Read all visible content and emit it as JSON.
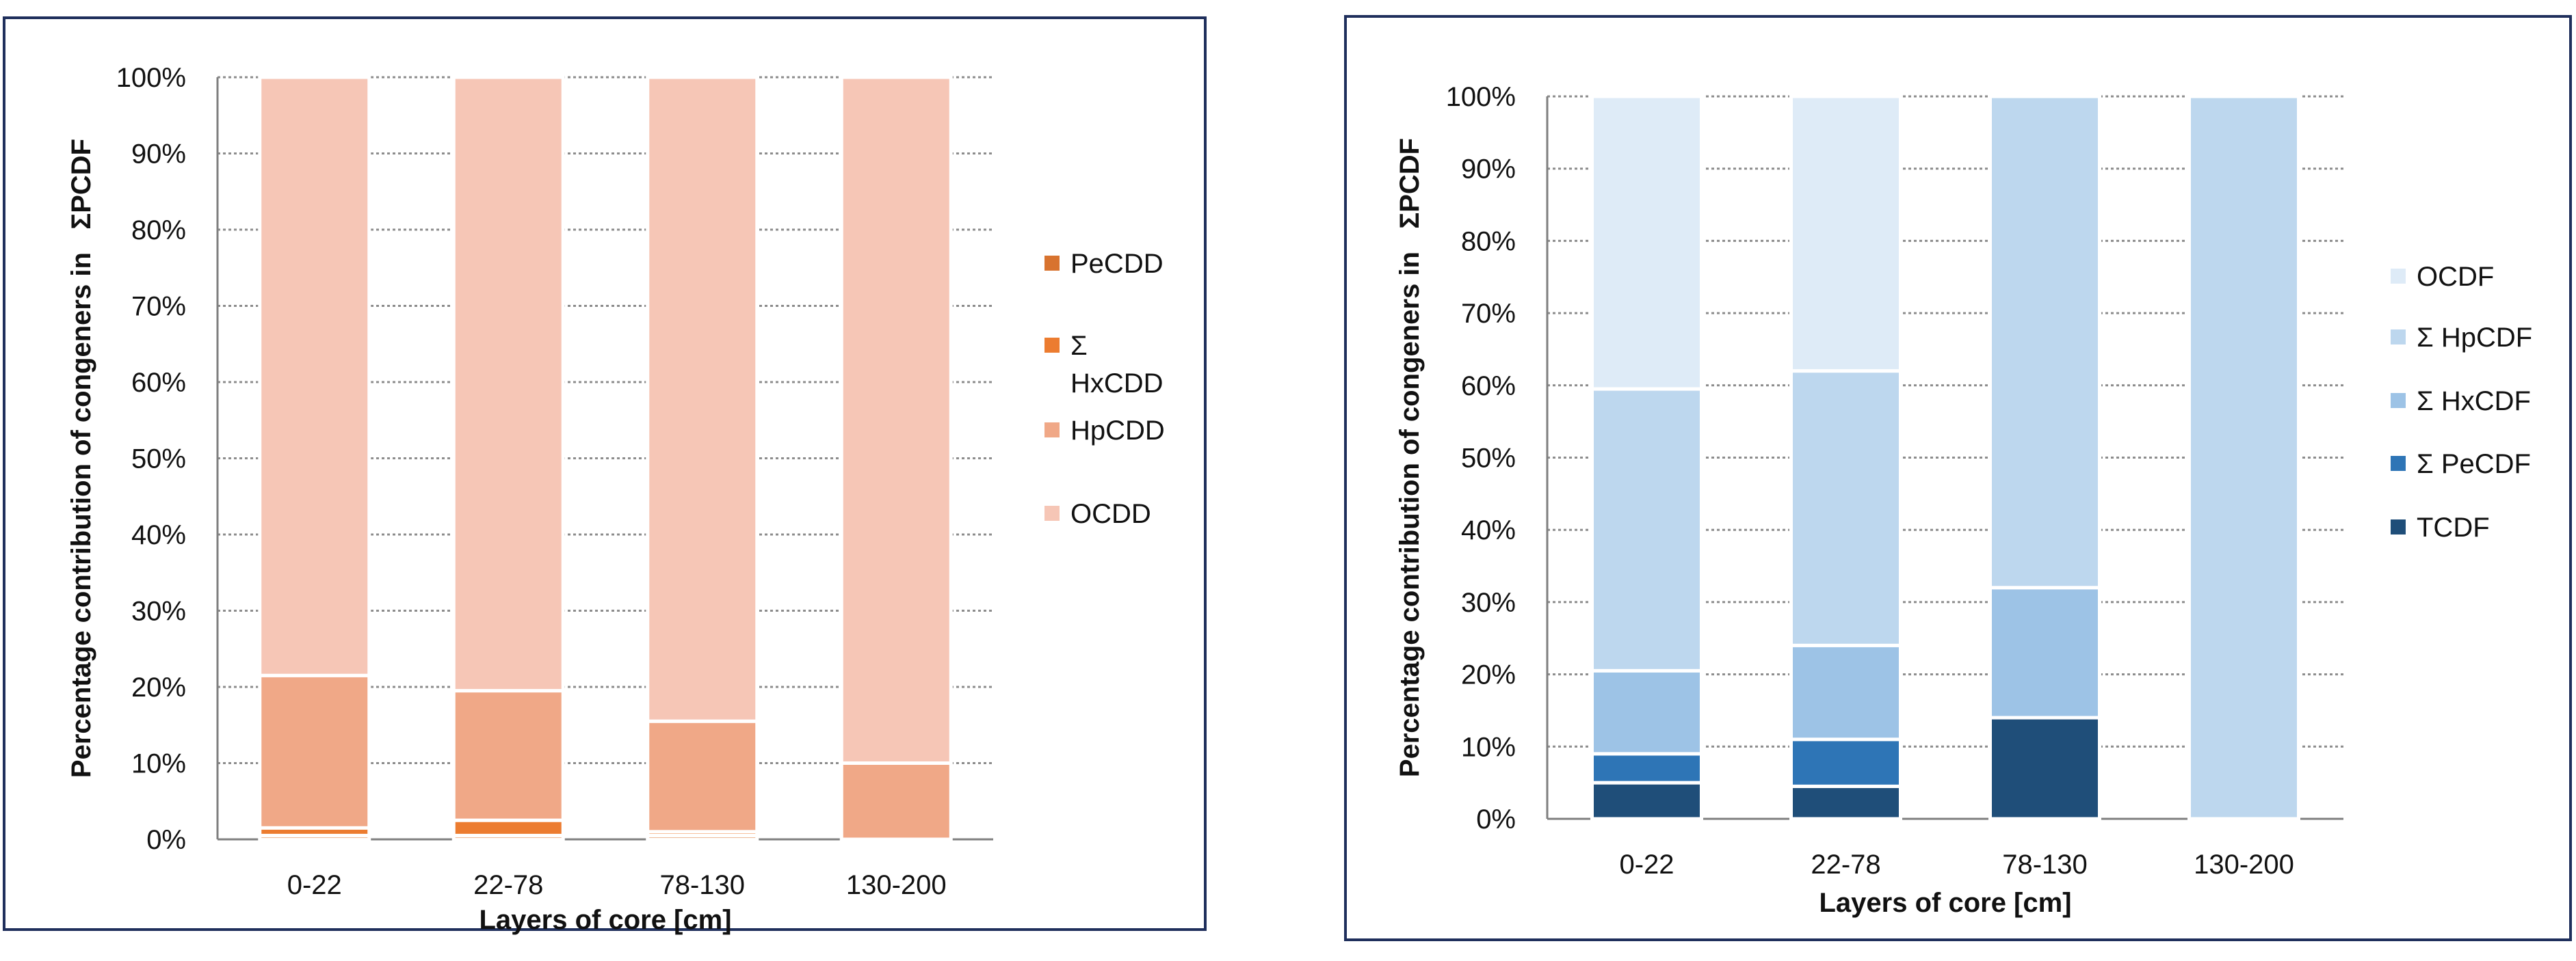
{
  "chart_data": [
    {
      "type": "bar",
      "stacked": true,
      "percent": true,
      "title": "",
      "xlabel": "Layers of core [cm]",
      "ylabel": "Percentage contribution of congeners in   ΣPCDF",
      "ylim": [
        0,
        100
      ],
      "yticks": [
        "0%",
        "10%",
        "20%",
        "30%",
        "40%",
        "50%",
        "60%",
        "70%",
        "80%",
        "90%",
        "100%"
      ],
      "categories": [
        "0-22",
        "22-78",
        "78-130",
        "130-200"
      ],
      "grid": true,
      "legend_position": "right",
      "series": [
        {
          "name": "PeCDD",
          "legend_lines": [
            "PeCDD"
          ],
          "color": "#d8732f",
          "values": [
            0.5,
            0.5,
            0.5,
            0
          ]
        },
        {
          "name": "Σ HxCDD",
          "legend_lines": [
            "Σ",
            "HxCDD"
          ],
          "color": "#ec7c30",
          "values": [
            1,
            2,
            0.5,
            0
          ]
        },
        {
          "name": "HpCDD",
          "legend_lines": [
            "HpCDD"
          ],
          "color": "#f0a887",
          "values": [
            20,
            17,
            14.5,
            10
          ]
        },
        {
          "name": "OCDD",
          "legend_lines": [
            "OCDD"
          ],
          "color": "#f6c6b6",
          "values": [
            78.5,
            80.5,
            84.5,
            90
          ]
        }
      ]
    },
    {
      "type": "bar",
      "stacked": true,
      "percent": true,
      "title": "",
      "xlabel": "Layers of core [cm]",
      "ylabel": "Percentage contribution of congeners in   ΣPCDF",
      "ylim": [
        0,
        100
      ],
      "yticks": [
        "0%",
        "10%",
        "20%",
        "30%",
        "40%",
        "50%",
        "60%",
        "70%",
        "80%",
        "90%",
        "100%"
      ],
      "categories": [
        "0-22",
        "22-78",
        "78-130",
        "130-200"
      ],
      "grid": true,
      "legend_position": "right",
      "series": [
        {
          "name": "TCDF",
          "legend_lines": [
            "TCDF"
          ],
          "color": "#1f4e79",
          "values": [
            5,
            4.5,
            14,
            0
          ]
        },
        {
          "name": "Σ PeCDF",
          "legend_lines": [
            "Σ PeCDF"
          ],
          "color": "#2e75b6",
          "values": [
            4,
            6.5,
            0,
            0
          ]
        },
        {
          "name": "Σ HxCDF",
          "legend_lines": [
            "Σ HxCDF"
          ],
          "color": "#9dc3e6",
          "values": [
            11.5,
            13,
            18,
            0
          ]
        },
        {
          "name": "Σ HpCDF",
          "legend_lines": [
            "Σ HpCDF"
          ],
          "color": "#bdd7ee",
          "values": [
            39,
            38,
            68,
            100
          ]
        },
        {
          "name": "OCDF",
          "legend_lines": [
            "OCDF"
          ],
          "color": "#deebf7",
          "values": [
            40.5,
            38,
            0,
            0
          ]
        }
      ]
    }
  ]
}
